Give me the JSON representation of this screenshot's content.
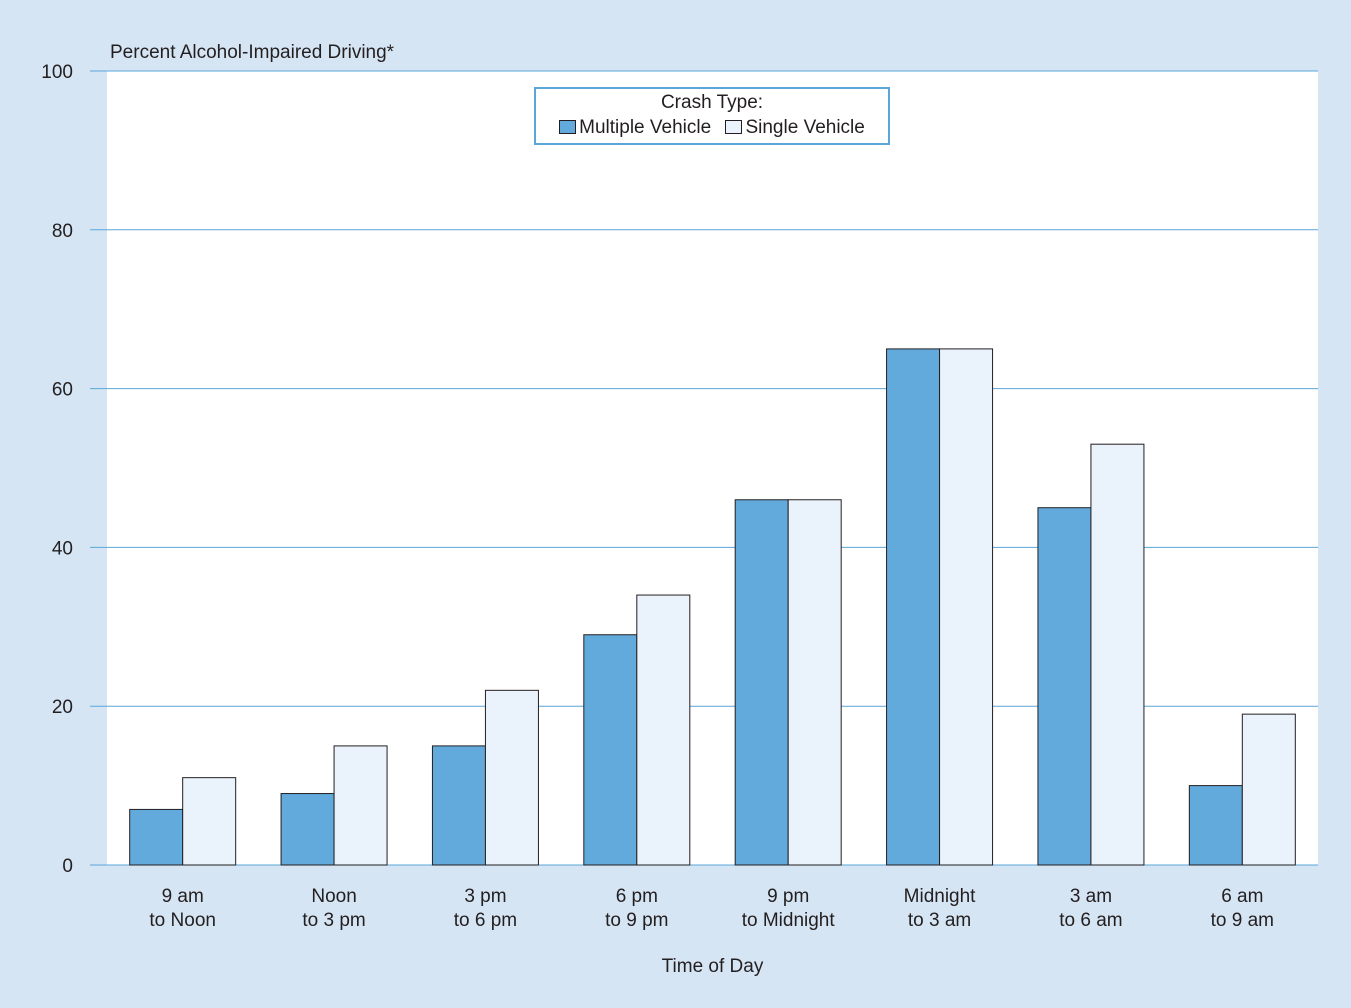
{
  "chart_data": {
    "type": "bar",
    "ylabel": "Percent Alcohol-Impaired Driving*",
    "xlabel": "Time of Day",
    "ylim": [
      0,
      100
    ],
    "yticks": [
      0,
      20,
      40,
      60,
      80,
      100
    ],
    "grid": true,
    "legend": {
      "title": "Crash Type:",
      "placement": "top-center"
    },
    "categories": [
      [
        "9 am",
        "to Noon"
      ],
      [
        "Noon",
        "to 3 pm"
      ],
      [
        "3 pm",
        "to 6 pm"
      ],
      [
        "6 pm",
        "to 9 pm"
      ],
      [
        "9 pm",
        "to Midnight"
      ],
      [
        "Midnight",
        "to 3 am"
      ],
      [
        "3 am",
        "to 6 am"
      ],
      [
        "6 am",
        "to 9 am"
      ]
    ],
    "series": [
      {
        "name": "Multiple Vehicle",
        "color": "#62a9dc",
        "values": [
          7,
          9,
          15,
          29,
          46,
          65,
          45,
          10
        ]
      },
      {
        "name": "Single Vehicle",
        "color": "#eaf3fb",
        "values": [
          11,
          15,
          22,
          34,
          46,
          65,
          53,
          19
        ]
      }
    ]
  },
  "colors": {
    "background": "#d6e5f4",
    "plot_area": "#ffffff",
    "gridline": "#5aa6d8",
    "text": "#231f20"
  }
}
